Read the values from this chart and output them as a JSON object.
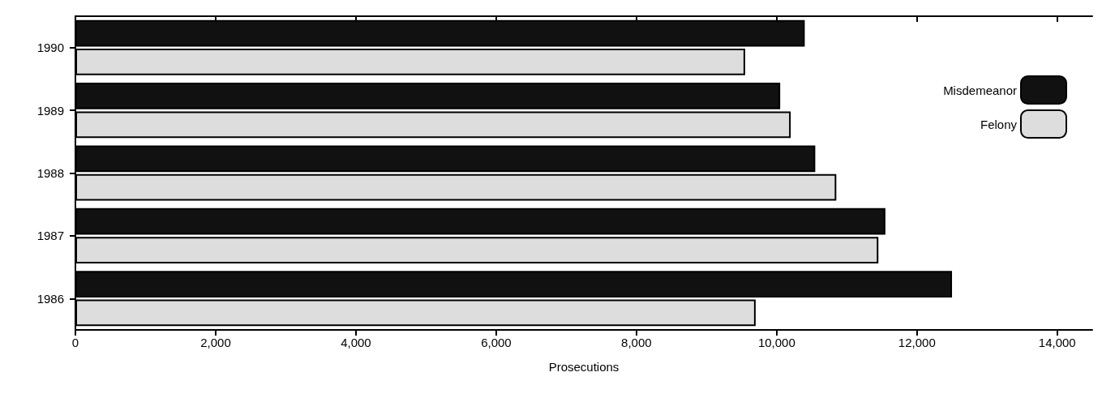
{
  "chart_data": {
    "type": "bar",
    "orientation": "horizontal",
    "xlabel": "Prosecutions",
    "categories": [
      "1990",
      "1989",
      "1988",
      "1987",
      "1986"
    ],
    "series": [
      {
        "name": "Misdemeanor",
        "color": "#111111",
        "values": [
          10400,
          10050,
          10550,
          11550,
          12500
        ]
      },
      {
        "name": "Felony",
        "color": "#dddddd",
        "values": [
          9550,
          10200,
          10850,
          11450,
          9700
        ]
      }
    ],
    "xlim": [
      0,
      14500
    ],
    "xticks": [
      0,
      {
        "value": 2000,
        "label": "2,000"
      },
      {
        "value": 4000,
        "label": "4,000"
      },
      {
        "value": 6000,
        "label": "6,000"
      },
      {
        "value": 8000,
        "label": "8,000"
      },
      {
        "value": 10000,
        "label": "10,000"
      },
      {
        "value": 12000,
        "label": "12,000"
      },
      {
        "value": 14000,
        "label": "14,000"
      }
    ],
    "grid": false,
    "legend": "top right"
  }
}
